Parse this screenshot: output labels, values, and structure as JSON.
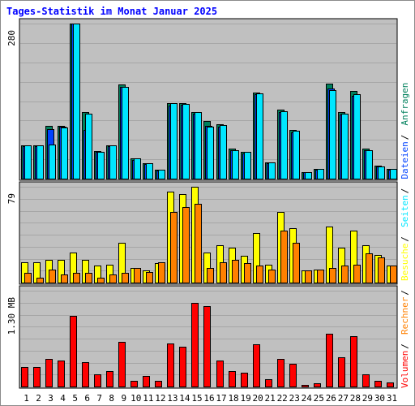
{
  "chart_data": {
    "type": "bar",
    "title": "Tages-Statistik im Monat Januar 2025",
    "categories": [
      "1",
      "2",
      "3",
      "4",
      "5",
      "6",
      "7",
      "8",
      "9",
      "10",
      "11",
      "12",
      "13",
      "14",
      "15",
      "16",
      "17",
      "18",
      "19",
      "20",
      "21",
      "22",
      "23",
      "24",
      "25",
      "26",
      "27",
      "28",
      "29",
      "30",
      "31"
    ],
    "weekend_categories": [
      "4",
      "5",
      "11",
      "12",
      "18",
      "19",
      "25",
      "26"
    ],
    "panels": [
      {
        "name": "anfragen-dateien-seiten",
        "ymax_label": "280",
        "ylim": [
          0,
          280
        ],
        "series": [
          {
            "name": "Anfragen",
            "color": "#00805c",
            "values": [
              60,
              60,
              96,
              96,
              280,
              120,
              50,
              60,
              170,
              36,
              28,
              16,
              136,
              136,
              120,
              104,
              98,
              54,
              48,
              156,
              30,
              124,
              88,
              12,
              17,
              171,
              120,
              158,
              54,
              24,
              18
            ]
          },
          {
            "name": "Dateien",
            "color": "#0042ff",
            "values": [
              58,
              58,
              90,
              94,
              280,
              88,
              48,
              58,
              165,
              34,
              27,
              15,
              132,
              134,
              118,
              96,
              94,
              52,
              46,
              152,
              28,
              120,
              84,
              11,
              16,
              162,
              116,
              150,
              52,
              22,
              16
            ]
          },
          {
            "name": "Seiten",
            "color": "#00e6ff",
            "values": [
              60,
              60,
              62,
              92,
              280,
              118,
              48,
              60,
              166,
              36,
              28,
              16,
              136,
              135,
              120,
              94,
              97,
              52,
              48,
              154,
              30,
              122,
              86,
              12,
              17,
              160,
              118,
              152,
              52,
              22,
              17
            ]
          }
        ],
        "side_labels": [
          "Anfragen",
          "Dateien",
          "Seiten"
        ]
      },
      {
        "name": "besuche-rechner",
        "ymax_label": "79",
        "ylim": [
          0,
          79
        ],
        "series": [
          {
            "name": "Besuche",
            "color": "#ffff00",
            "values": [
              17,
              17,
              19,
              19,
              25,
              19,
              14,
              15,
              33,
              12,
              10,
              16,
              75,
              73,
              79,
              25,
              31,
              29,
              22,
              41,
              15,
              58,
              45,
              10,
              11,
              46,
              29,
              43,
              31,
              23,
              14
            ]
          },
          {
            "name": "Rechner",
            "color": "#ff8000",
            "values": [
              8,
              4,
              11,
              7,
              8,
              8,
              4,
              7,
              8,
              12,
              9,
              17,
              58,
              62,
              65,
              12,
              17,
              19,
              16,
              14,
              11,
              43,
              33,
              10,
              11,
              12,
              14,
              15,
              24,
              21,
              14
            ]
          }
        ],
        "side_labels": [
          "Besuche",
          "Rechner"
        ]
      },
      {
        "name": "volumen",
        "ymax_label": "1.30 MB",
        "ylim": [
          0,
          1.3
        ],
        "series": [
          {
            "name": "Volumen",
            "color": "#ff0000",
            "values": [
              0.26,
              0.26,
              0.37,
              0.35,
              0.96,
              0.33,
              0.17,
              0.21,
              0.61,
              0.08,
              0.14,
              0.08,
              0.58,
              0.54,
              1.13,
              1.09,
              0.35,
              0.21,
              0.19,
              0.57,
              0.1,
              0.37,
              0.31,
              0.02,
              0.04,
              0.72,
              0.4,
              0.68,
              0.17,
              0.08,
              0.06
            ]
          }
        ],
        "side_labels": [
          "Volumen"
        ]
      }
    ],
    "separator": "/"
  }
}
